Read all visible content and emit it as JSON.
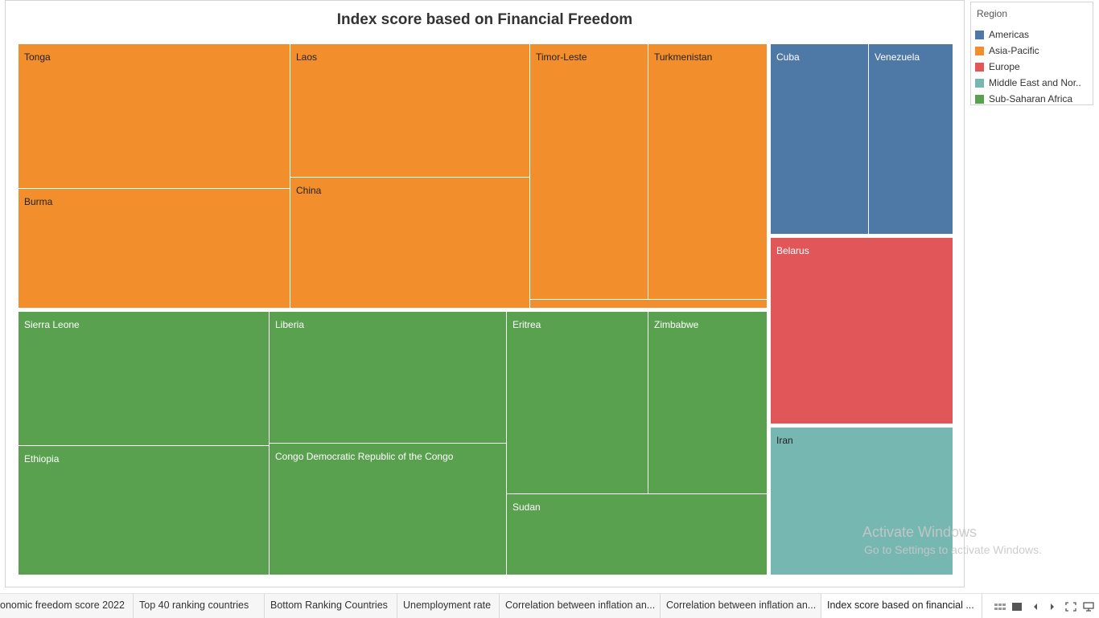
{
  "title": "Index score based on Financial Freedom",
  "legend": {
    "title": "Region",
    "items": [
      {
        "label": "Americas",
        "color": "#4e79a7"
      },
      {
        "label": "Asia-Pacific",
        "color": "#f28e2b"
      },
      {
        "label": "Europe",
        "color": "#e15759"
      },
      {
        "label": "Middle East and Nor..",
        "color": "#76b7b2"
      },
      {
        "label": "Sub-Saharan Africa",
        "color": "#59a14f"
      }
    ]
  },
  "tiles": {
    "tonga": "Tonga",
    "burma": "Burma",
    "laos": "Laos",
    "china": "China",
    "timor_leste": "Timor-Leste",
    "turkmenistan": "Turkmenistan",
    "cuba": "Cuba",
    "venezuela": "Venezuela",
    "belarus": "Belarus",
    "iran": "Iran",
    "sierra_leone": "Sierra Leone",
    "ethiopia": "Ethiopia",
    "liberia": "Liberia",
    "congo": "Congo Democratic Republic of the Congo",
    "eritrea": "Eritrea",
    "zimbabwe": "Zimbabwe",
    "sudan": "Sudan"
  },
  "colors": {
    "americas": "#4e79a7",
    "asia_pacific": "#f28e2b",
    "europe": "#e15759",
    "middle_east": "#76b7b2",
    "africa": "#59a14f"
  },
  "watermark": {
    "line1": "Activate Windows",
    "line2": "Go to Settings to activate Windows."
  },
  "tabs": [
    {
      "label": "onomic freedom score 2022",
      "active": false
    },
    {
      "label": "Top 40 ranking countries",
      "active": false
    },
    {
      "label": "Bottom Ranking Countries",
      "active": false
    },
    {
      "label": "Unemployment rate",
      "active": false
    },
    {
      "label": "Correlation between inflation an...",
      "active": false
    },
    {
      "label": "Correlation between inflation an...",
      "active": false
    },
    {
      "label": "Index score based on financial ...",
      "active": true
    }
  ]
}
